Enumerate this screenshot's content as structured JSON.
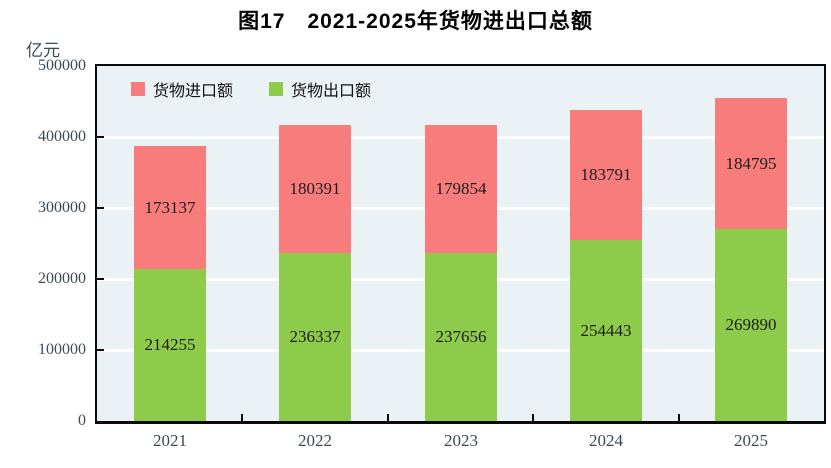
{
  "figure": {
    "title": "图17　2021-2025年货物进出口总额",
    "unit_label": "亿元"
  },
  "chart_data": {
    "type": "bar",
    "stacked": true,
    "orientation": "vertical",
    "title": "图17　2021-2025年货物进出口总额",
    "ylabel": "亿元",
    "categories": [
      "2021",
      "2022",
      "2023",
      "2024",
      "2025"
    ],
    "series": [
      {
        "name": "货物进口额",
        "color": "#f97c7c",
        "values": [
          173137,
          180391,
          179854,
          183791,
          184795
        ]
      },
      {
        "name": "货物出口额",
        "color": "#8fcb4a",
        "values": [
          214255,
          236337,
          237656,
          254443,
          269890
        ]
      }
    ],
    "stack_order_bottom_to_top": [
      "货物出口额",
      "货物进口额"
    ],
    "totals": [
      387392,
      416728,
      417510,
      438234,
      454685
    ],
    "ylim": [
      0,
      500000
    ],
    "yticks": [
      0,
      100000,
      200000,
      300000,
      400000,
      500000
    ],
    "grid": true,
    "gridline_color": "#ffffff",
    "plot_background": "#ebf2f6",
    "axis_color": "#0a0a0a",
    "tick_label_color": "#3b4a54",
    "value_label_color": "#1c1c1c",
    "legend_position": "top-left-inside",
    "value_labels": "centered inside each stacked segment"
  }
}
